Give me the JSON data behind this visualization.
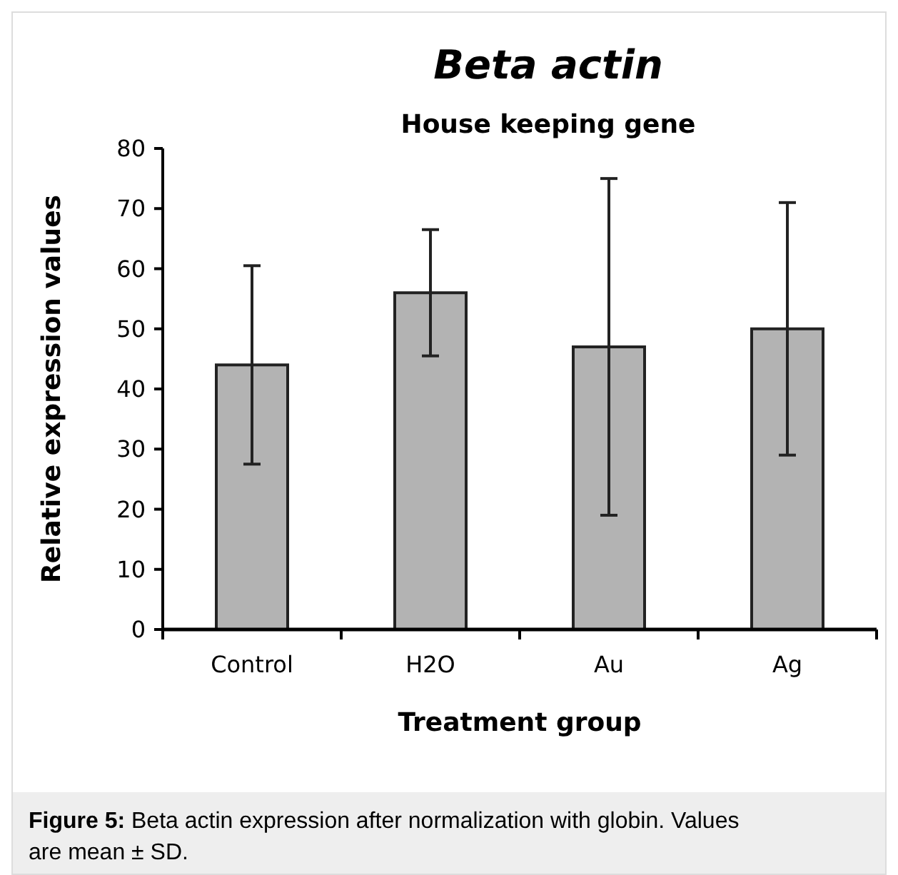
{
  "chart_data": {
    "type": "bar",
    "title": "Beta actin",
    "subtitle": "House keeping gene",
    "xlabel": "Treatment group",
    "ylabel": "Relative expression values",
    "categories": [
      "Control",
      "H2O",
      "Au",
      "Ag"
    ],
    "values": [
      44,
      56,
      47,
      50
    ],
    "errors": [
      16.5,
      10.5,
      28,
      21
    ],
    "color": "#b3b3b3",
    "ylim": [
      0,
      80
    ],
    "yticks": [
      0,
      10,
      20,
      30,
      40,
      50,
      60,
      70,
      80
    ],
    "grid": false,
    "annotations": [
      "Figure 5: Beta actin expression after normalization with globin. Values are mean ± SD."
    ]
  }
}
